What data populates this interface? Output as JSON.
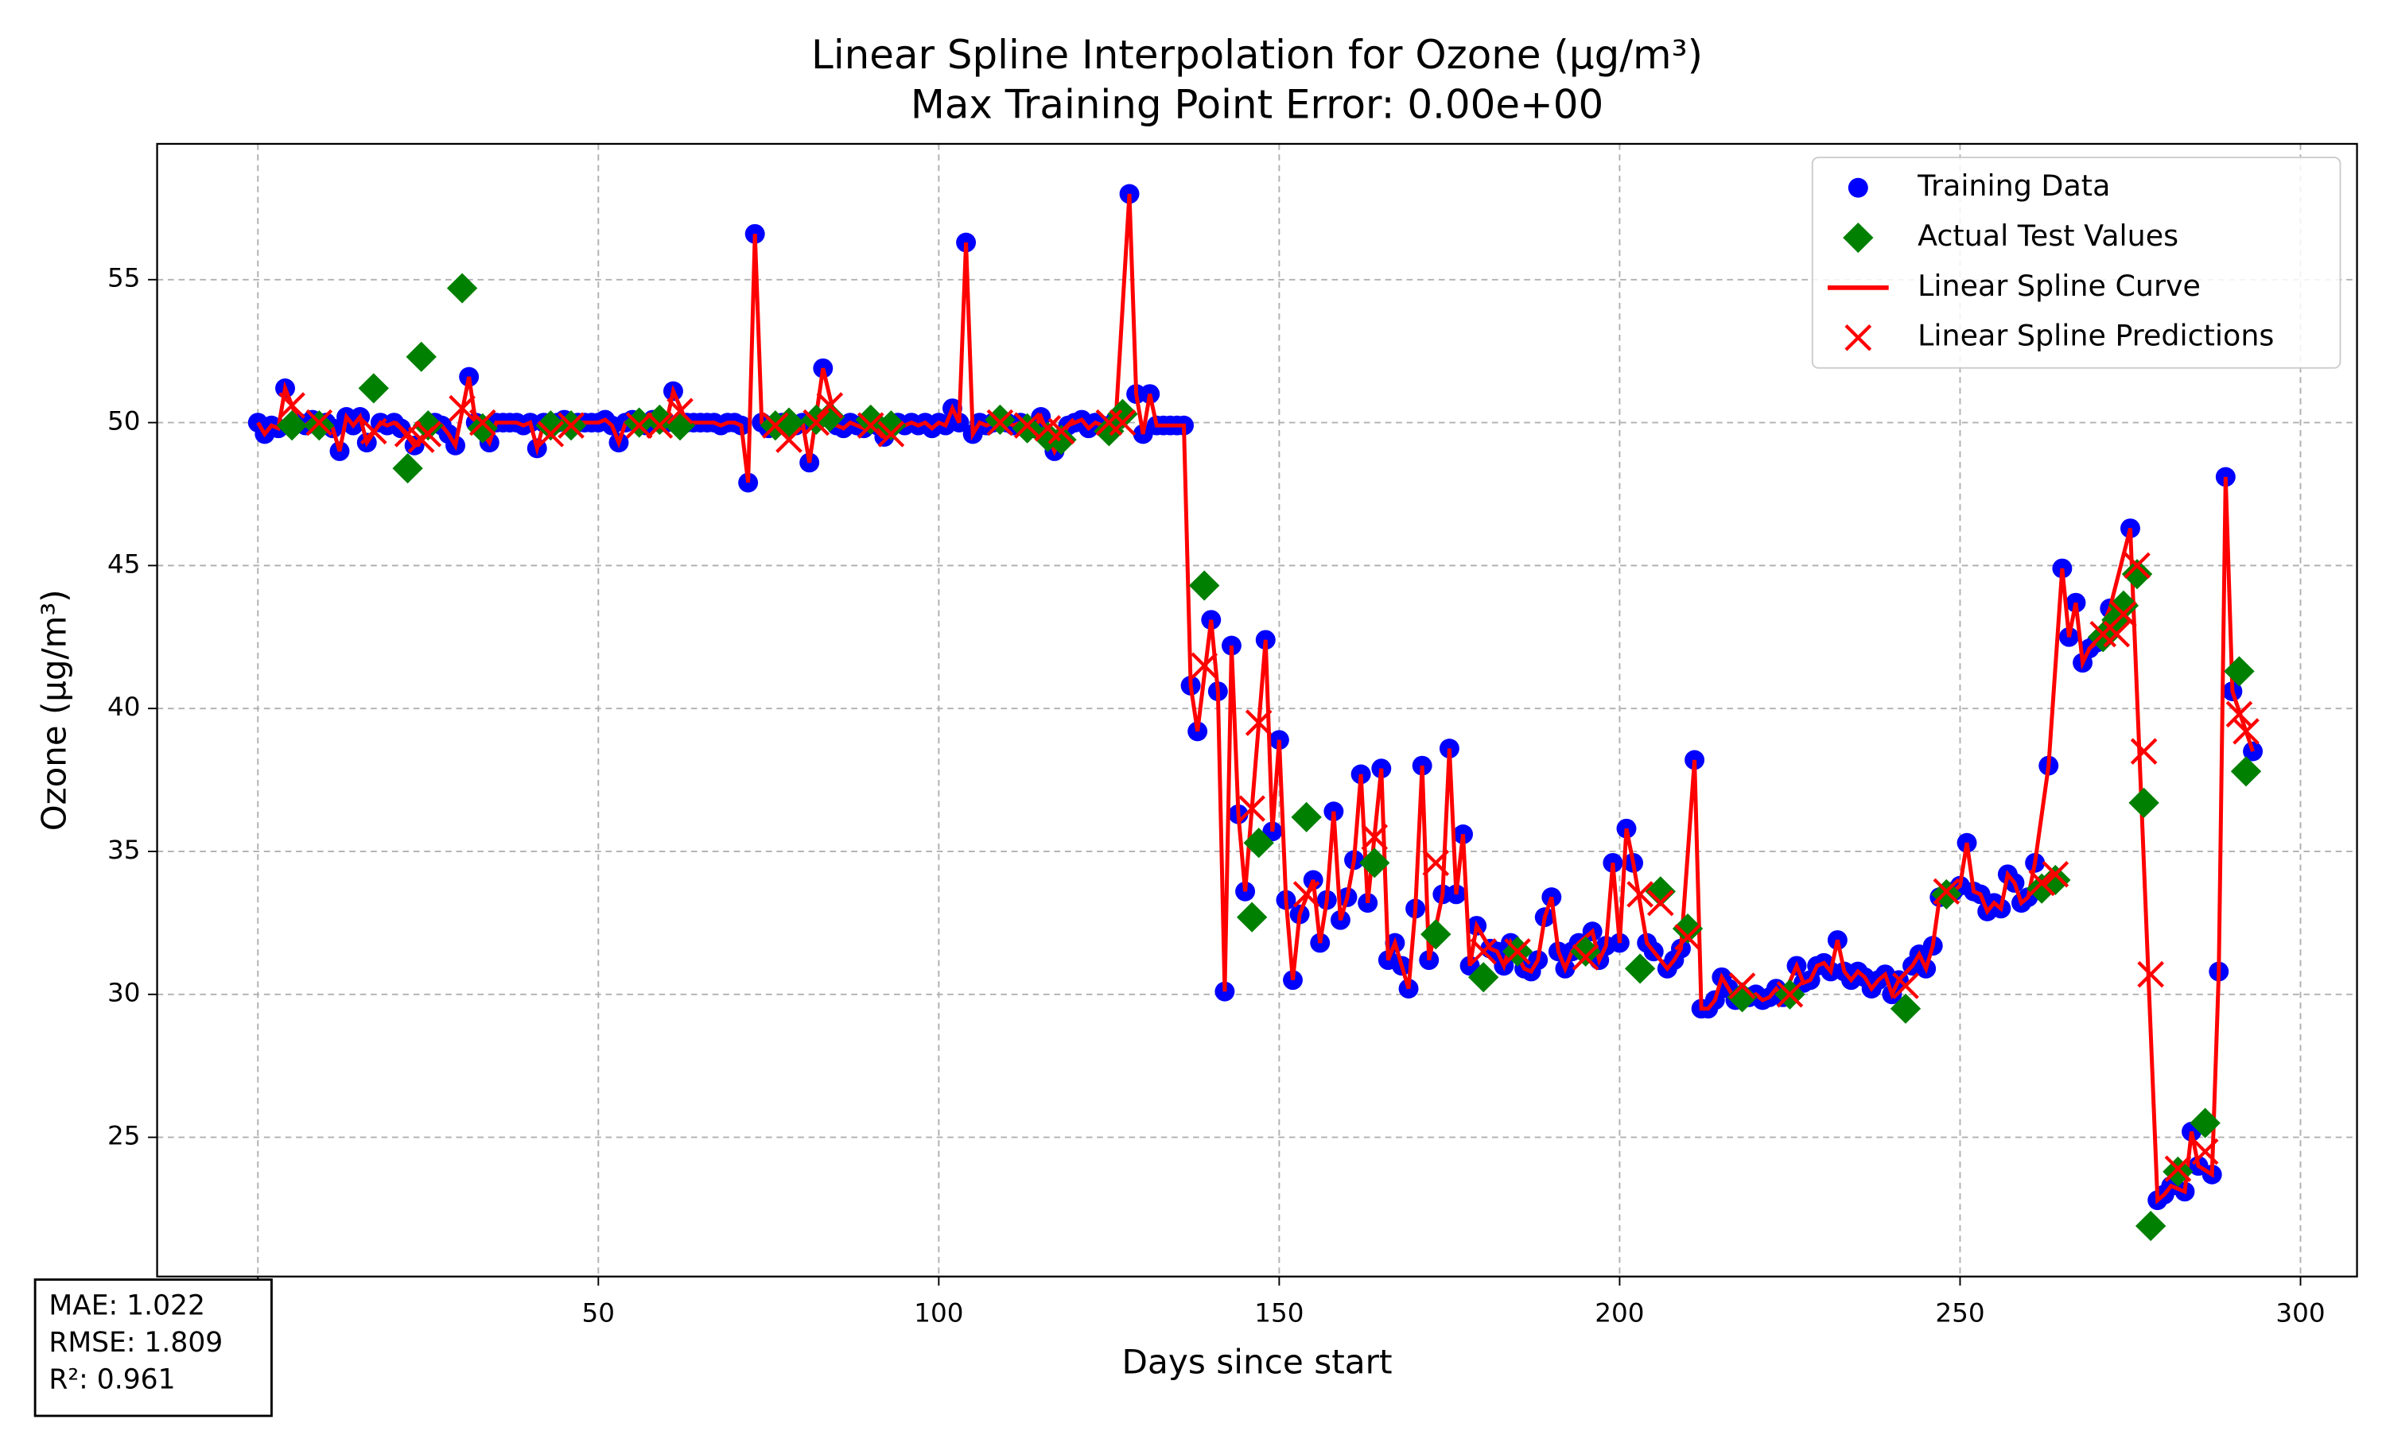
{
  "chart_data": {
    "type": "scatter",
    "title": [
      "Linear Spline Interpolation for Ozone (µg/m³)",
      "Max Training Point Error: 0.00e+00"
    ],
    "xlabel": "Days since start",
    "ylabel": "Ozone (µg/m³)",
    "xlim": [
      -14.8,
      308.3
    ],
    "ylim": [
      20.13,
      59.75
    ],
    "xticks": [
      0,
      50,
      100,
      150,
      200,
      250,
      300
    ],
    "yticks": [
      25,
      30,
      35,
      40,
      45,
      50,
      55
    ],
    "grid": true,
    "legend": "upper right",
    "annotations": [
      "MAE: 1.022",
      "RMSE: 1.809",
      "R²: 0.961"
    ],
    "series": [
      {
        "name": "Training Data",
        "color": "#0000ff",
        "marker": "circle",
        "x": [
          0,
          1,
          2,
          3,
          4,
          6,
          7,
          8,
          10,
          11,
          12,
          13,
          14,
          15,
          16,
          18,
          19,
          20,
          21,
          23,
          26,
          27,
          28,
          29,
          31,
          32,
          34,
          35,
          36,
          37,
          38,
          39,
          40,
          41,
          42,
          44,
          45,
          47,
          48,
          49,
          50,
          51,
          52,
          53,
          54,
          55,
          57,
          58,
          60,
          61,
          63,
          64,
          65,
          66,
          67,
          68,
          69,
          70,
          71,
          72,
          73,
          74,
          75,
          77,
          79,
          80,
          81,
          83,
          85,
          86,
          87,
          88,
          89,
          91,
          92,
          94,
          95,
          96,
          97,
          98,
          99,
          100,
          101,
          102,
          103,
          104,
          105,
          106,
          107,
          108,
          110,
          111,
          112,
          114,
          115,
          117,
          119,
          120,
          121,
          122,
          123,
          124,
          126,
          128,
          129,
          130,
          131,
          132,
          133,
          134,
          135,
          136,
          137,
          138,
          140,
          141,
          142,
          143,
          144,
          145,
          148,
          149,
          150,
          151,
          152,
          153,
          155,
          156,
          157,
          158,
          159,
          160,
          161,
          162,
          163,
          165,
          166,
          167,
          168,
          169,
          170,
          171,
          172,
          174,
          175,
          176,
          177,
          178,
          179,
          181,
          182,
          183,
          184,
          186,
          187,
          188,
          189,
          190,
          191,
          192,
          193,
          194,
          196,
          197,
          198,
          199,
          200,
          201,
          202,
          204,
          205,
          207,
          208,
          209,
          211,
          212,
          213,
          214,
          215,
          216,
          217,
          219,
          220,
          221,
          222,
          223,
          224,
          226,
          227,
          228,
          229,
          230,
          231,
          232,
          233,
          234,
          235,
          236,
          237,
          238,
          239,
          240,
          241,
          243,
          244,
          245,
          246,
          247,
          249,
          250,
          251,
          252,
          253,
          254,
          255,
          256,
          257,
          258,
          259,
          260,
          261,
          263,
          265,
          266,
          267,
          268,
          269,
          270,
          272,
          275,
          279,
          280,
          281,
          283,
          284,
          285,
          287,
          288,
          289,
          290,
          293
        ],
        "values": [
          50.0,
          49.6,
          49.9,
          49.8,
          51.2,
          50.0,
          49.9,
          50.1,
          50.0,
          49.8,
          49.0,
          50.2,
          49.9,
          50.2,
          49.3,
          50.0,
          49.9,
          50.0,
          49.8,
          49.2,
          50.0,
          49.9,
          49.6,
          49.2,
          51.6,
          50.0,
          49.3,
          50.0,
          50.0,
          50.0,
          50.0,
          49.9,
          50.0,
          49.1,
          50.0,
          50.0,
          50.1,
          50.0,
          50.0,
          50.0,
          50.0,
          50.1,
          49.9,
          49.3,
          50.0,
          50.1,
          49.9,
          50.1,
          50.0,
          51.1,
          50.0,
          50.0,
          50.0,
          50.0,
          50.0,
          49.9,
          50.0,
          50.0,
          49.9,
          47.9,
          56.6,
          50.0,
          49.8,
          50.0,
          49.9,
          50.0,
          48.6,
          51.9,
          49.9,
          49.8,
          50.0,
          49.9,
          49.8,
          49.9,
          49.5,
          50.0,
          49.9,
          50.0,
          49.9,
          50.0,
          49.8,
          50.0,
          49.9,
          50.5,
          50.0,
          56.3,
          49.6,
          50.0,
          49.9,
          50.0,
          50.0,
          49.9,
          50.0,
          49.8,
          50.2,
          49.0,
          49.9,
          50.0,
          50.1,
          49.8,
          50.0,
          49.9,
          50.1,
          58.0,
          51.0,
          49.6,
          51.0,
          49.9,
          49.9,
          49.9,
          49.9,
          49.9,
          40.8,
          39.2,
          43.1,
          40.6,
          30.1,
          42.2,
          36.3,
          33.6,
          42.4,
          35.7,
          38.9,
          33.3,
          30.5,
          32.8,
          34.0,
          31.8,
          33.3,
          36.4,
          32.6,
          33.4,
          34.7,
          37.7,
          33.2,
          37.9,
          31.2,
          31.8,
          31.0,
          30.2,
          33.0,
          38.0,
          31.2,
          33.5,
          38.6,
          33.5,
          35.6,
          31.0,
          32.4,
          31.6,
          31.5,
          31.0,
          31.8,
          30.9,
          30.8,
          31.2,
          32.7,
          33.4,
          31.5,
          30.9,
          31.5,
          31.8,
          32.2,
          31.2,
          31.7,
          34.6,
          31.8,
          35.8,
          34.6,
          31.8,
          31.5,
          30.9,
          31.2,
          31.6,
          38.2,
          29.5,
          29.5,
          29.8,
          30.6,
          30.2,
          29.8,
          29.9,
          30.0,
          29.8,
          29.9,
          30.2,
          29.9,
          31.0,
          30.4,
          30.5,
          31.0,
          31.1,
          30.8,
          31.9,
          30.8,
          30.5,
          30.8,
          30.6,
          30.2,
          30.5,
          30.7,
          30.0,
          30.5,
          31.0,
          31.4,
          30.9,
          31.7,
          33.4,
          33.6,
          33.8,
          35.3,
          33.6,
          33.5,
          32.9,
          33.2,
          33.0,
          34.2,
          33.9,
          33.2,
          33.4,
          34.6,
          38.0,
          44.9,
          42.5,
          43.7,
          41.6,
          42.1,
          42.3,
          43.5,
          46.3,
          22.8,
          23.0,
          23.3,
          23.1,
          25.2,
          24.0,
          23.7,
          30.8,
          48.1,
          40.6,
          38.5
        ]
      },
      {
        "name": "Actual Test Values",
        "color": "#008000",
        "marker": "diamond",
        "x": [
          5,
          9,
          17,
          22,
          24,
          25,
          30,
          33,
          43,
          46,
          56,
          59,
          62,
          76,
          78,
          82,
          84,
          90,
          93,
          109,
          113,
          116,
          118,
          125,
          127,
          139,
          146,
          147,
          154,
          164,
          173,
          180,
          185,
          195,
          203,
          206,
          210,
          218,
          225,
          242,
          248,
          262,
          264,
          271,
          273,
          274,
          276,
          277,
          278,
          282,
          286,
          291,
          292
        ],
        "values": [
          49.9,
          49.9,
          51.2,
          48.4,
          52.3,
          49.9,
          54.7,
          49.8,
          49.9,
          49.9,
          50.0,
          50.1,
          49.9,
          49.9,
          50.0,
          50.1,
          50.2,
          50.1,
          49.9,
          50.1,
          49.8,
          49.5,
          49.4,
          49.7,
          50.3,
          44.3,
          32.7,
          35.3,
          36.2,
          34.6,
          32.1,
          30.6,
          31.5,
          31.5,
          30.9,
          33.6,
          32.3,
          29.9,
          30.0,
          29.5,
          33.5,
          33.7,
          34.0,
          42.5,
          43.1,
          43.6,
          44.7,
          36.7,
          21.9,
          23.8,
          25.5,
          41.3,
          37.8
        ]
      },
      {
        "name": "Linear Spline Curve",
        "color": "#ff0000",
        "marker": "line"
      },
      {
        "name": "Linear Spline Predictions",
        "color": "#ff0000",
        "marker": "x",
        "x": [
          5,
          9,
          17,
          22,
          24,
          25,
          30,
          33,
          43,
          46,
          56,
          59,
          62,
          76,
          78,
          82,
          84,
          90,
          93,
          109,
          113,
          116,
          118,
          125,
          127,
          139,
          146,
          147,
          154,
          164,
          173,
          180,
          185,
          195,
          203,
          206,
          210,
          218,
          225,
          242,
          248,
          262,
          264,
          271,
          273,
          274,
          276,
          277,
          278,
          282,
          286,
          291,
          292
        ],
        "values": [
          50.6,
          50.0,
          49.7,
          49.6,
          49.4,
          49.6,
          50.5,
          50.0,
          49.6,
          49.9,
          49.9,
          49.9,
          50.4,
          49.9,
          49.4,
          50.0,
          50.6,
          49.9,
          49.6,
          50.0,
          49.9,
          49.8,
          49.7,
          50.0,
          50.0,
          41.5,
          36.5,
          39.5,
          33.5,
          35.5,
          34.6,
          31.5,
          31.5,
          31.3,
          33.5,
          33.2,
          32.0,
          30.3,
          30.0,
          30.3,
          33.6,
          33.9,
          34.2,
          42.6,
          42.6,
          43.3,
          45.0,
          38.5,
          30.7,
          23.9,
          24.5,
          39.8,
          39.2
        ]
      }
    ]
  }
}
